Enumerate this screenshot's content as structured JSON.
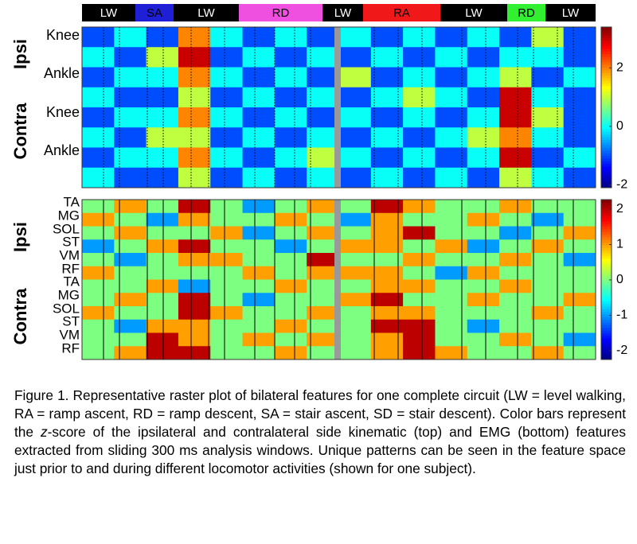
{
  "figure": {
    "activities": [
      {
        "label": "LW",
        "color": "#000000"
      },
      {
        "label": "SA",
        "color": "#1f1fd6"
      },
      {
        "label": "LW",
        "color": "#000000"
      },
      {
        "label": "RD",
        "color": "#f050e0"
      },
      {
        "label": "LW",
        "color": "#000000"
      },
      {
        "label": "RA",
        "color": "#f01818"
      },
      {
        "label": "LW",
        "color": "#000000"
      },
      {
        "label": "RD",
        "color": "#30f030"
      },
      {
        "label": "LW",
        "color": "#000000"
      }
    ],
    "panels": [
      {
        "groups": [
          "Ipsi",
          "Contra"
        ],
        "row_labels": [
          "Knee",
          "Ankle",
          "Knee",
          "Ankle"
        ],
        "clim": [
          -2.1,
          3.4
        ],
        "cticks": [
          2,
          0,
          -2
        ],
        "z": [
          [
            -1,
            0,
            -1,
            2,
            0,
            -1,
            0,
            -1,
            0,
            -1,
            0,
            -1,
            0,
            -1,
            1,
            -1
          ],
          [
            0,
            -1,
            1,
            3,
            -1,
            0,
            -1,
            0,
            -1,
            0,
            -1,
            0,
            -1,
            0,
            0,
            -1
          ],
          [
            -1,
            0,
            0,
            2,
            0,
            -1,
            0,
            -1,
            1,
            -1,
            0,
            -1,
            0,
            1,
            -1,
            0
          ],
          [
            0,
            -1,
            -1,
            1,
            -1,
            0,
            -1,
            0,
            -1,
            0,
            1,
            0,
            -1,
            3,
            0,
            -1
          ],
          [
            -1,
            0,
            0,
            2,
            0,
            -1,
            0,
            -1,
            0,
            -1,
            0,
            -1,
            0,
            3,
            1,
            -1
          ],
          [
            0,
            -1,
            1,
            1,
            -1,
            0,
            -1,
            0,
            -1,
            0,
            -1,
            0,
            1,
            2,
            0,
            -1
          ],
          [
            -1,
            0,
            0,
            2,
            0,
            -1,
            0,
            1,
            0,
            -1,
            0,
            -1,
            0,
            3,
            -1,
            0
          ],
          [
            0,
            -1,
            -1,
            1,
            -1,
            0,
            -1,
            0,
            -1,
            0,
            -1,
            0,
            -1,
            1,
            0,
            -1
          ]
        ]
      },
      {
        "groups": [
          "Ipsi",
          "Contra"
        ],
        "row_labels": [
          "TA",
          "MG",
          "SOL",
          "ST",
          "VM",
          "RF",
          "TA",
          "MG",
          "SOL",
          "ST",
          "VM",
          "RF"
        ],
        "clim": [
          -2.25,
          2.27
        ],
        "cticks": [
          2,
          1,
          0,
          -1,
          -2
        ],
        "z": [
          [
            0,
            1,
            0,
            2,
            0,
            -1,
            0,
            1,
            0,
            2,
            1,
            0,
            0,
            1,
            0,
            0
          ],
          [
            1,
            0,
            -1,
            1,
            0,
            0,
            1,
            0,
            -1,
            1,
            0,
            0,
            1,
            0,
            -1,
            0
          ],
          [
            0,
            1,
            0,
            0,
            1,
            -1,
            0,
            1,
            0,
            1,
            2,
            0,
            0,
            -1,
            0,
            1
          ],
          [
            -1,
            0,
            1,
            2,
            0,
            0,
            -1,
            0,
            1,
            1,
            0,
            1,
            -1,
            0,
            1,
            0
          ],
          [
            0,
            -1,
            0,
            1,
            1,
            0,
            0,
            2,
            0,
            0,
            1,
            0,
            0,
            1,
            0,
            -1
          ],
          [
            1,
            0,
            0,
            0,
            0,
            1,
            0,
            1,
            1,
            1,
            0,
            -1,
            1,
            0,
            0,
            0
          ],
          [
            0,
            0,
            1,
            -1,
            0,
            0,
            1,
            0,
            0,
            1,
            1,
            0,
            0,
            1,
            0,
            0
          ],
          [
            0,
            1,
            0,
            2,
            0,
            -1,
            0,
            0,
            1,
            2,
            0,
            0,
            1,
            0,
            0,
            1
          ],
          [
            1,
            0,
            0,
            2,
            1,
            0,
            0,
            1,
            0,
            1,
            1,
            0,
            0,
            0,
            1,
            0
          ],
          [
            0,
            -1,
            1,
            1,
            0,
            0,
            1,
            0,
            0,
            2,
            2,
            0,
            -1,
            0,
            0,
            0
          ],
          [
            0,
            0,
            2,
            1,
            0,
            1,
            0,
            1,
            0,
            1,
            2,
            0,
            0,
            1,
            0,
            -1
          ],
          [
            0,
            1,
            2,
            2,
            0,
            0,
            1,
            0,
            0,
            1,
            2,
            1,
            0,
            0,
            1,
            0
          ]
        ]
      }
    ]
  },
  "caption": {
    "before": "Figure 1. Representative raster plot of bilateral features for one complete circuit (LW = level walking, RA = ramp ascent, RD = ramp descent, SA = stair ascent, SD = stair descent). Color bars represent the ",
    "italic": "z",
    "after": "-score of the ipsilateral and contralateral side kinematic (top) and EMG (bottom) features extracted from sliding 300 ms analysis windows. Unique patterns can be seen in the feature space just prior to and during different locomotor activities (shown for one subject)."
  }
}
